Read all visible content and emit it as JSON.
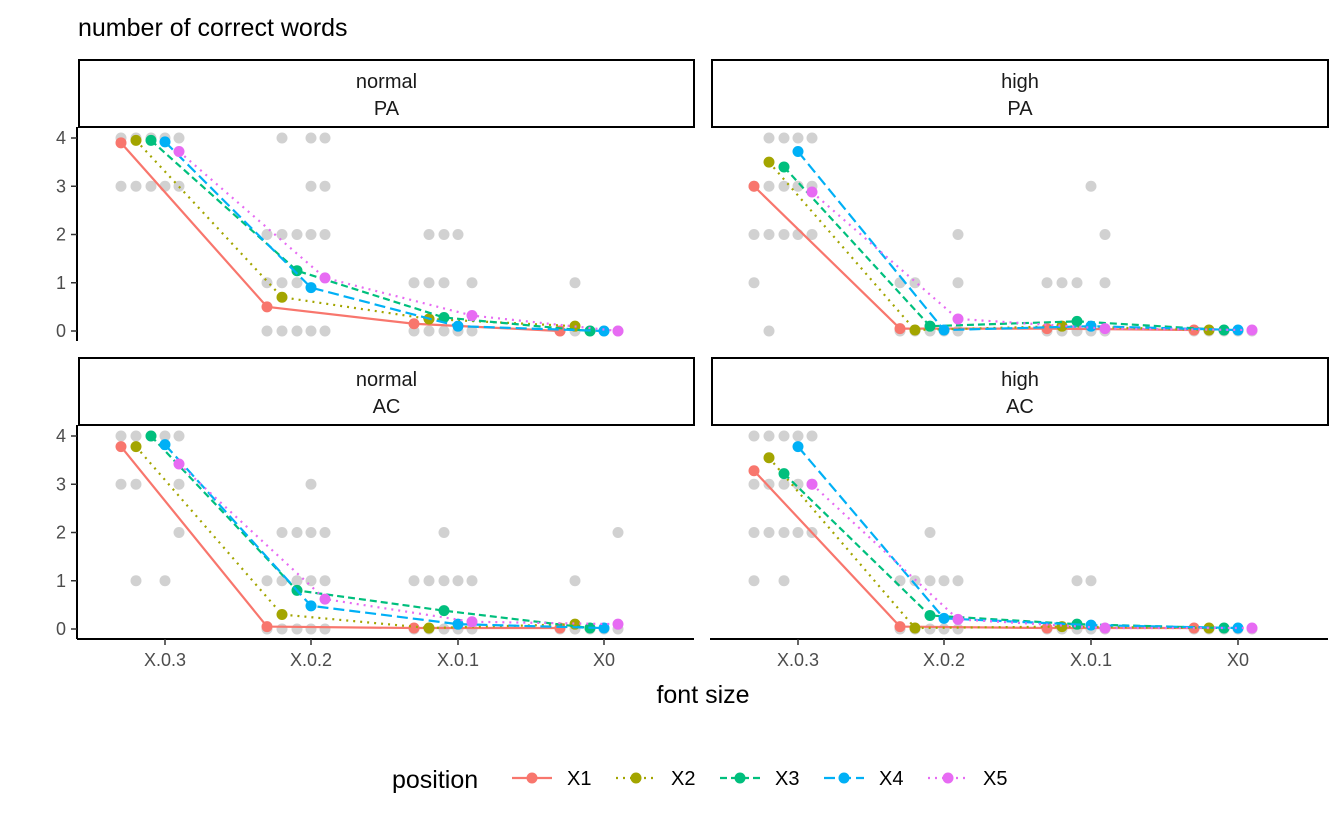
{
  "chart_data": {
    "type": "line",
    "title": "",
    "ylabel": "number of correct words",
    "xlabel": "font size",
    "ylim": [
      0,
      4
    ],
    "y_ticks": [
      0,
      1,
      2,
      3,
      4
    ],
    "categories": [
      "X.0.3",
      "X.0.2",
      "X.0.1",
      "X0"
    ],
    "legend": {
      "title": "position",
      "placement": "bottom",
      "entries": [
        "X1",
        "X2",
        "X3",
        "X4",
        "X5"
      ]
    },
    "series_styles": [
      {
        "name": "X1",
        "color": "#F8766D",
        "dash": "solid"
      },
      {
        "name": "X2",
        "color": "#A3A500",
        "dash": "dotted"
      },
      {
        "name": "X3",
        "color": "#00BF7D",
        "dash": "dashed"
      },
      {
        "name": "X4",
        "color": "#00B0F6",
        "dash": "longdash"
      },
      {
        "name": "X5",
        "color": "#E76BF3",
        "dash": "dotted"
      }
    ],
    "raw_points_color": "#999999",
    "panels": [
      {
        "strip": [
          "normal",
          "PA"
        ],
        "series": [
          {
            "name": "X1",
            "values": [
              3.9,
              0.5,
              0.15,
              0.0
            ]
          },
          {
            "name": "X2",
            "values": [
              3.95,
              0.7,
              0.25,
              0.1
            ]
          },
          {
            "name": "X3",
            "values": [
              3.95,
              1.25,
              0.28,
              0.0
            ]
          },
          {
            "name": "X4",
            "values": [
              3.92,
              0.9,
              0.1,
              0.0
            ]
          },
          {
            "name": "X5",
            "values": [
              3.72,
              1.1,
              0.32,
              0.0
            ]
          }
        ],
        "raw": [
          [
            [
              4,
              3
            ],
            [
              4,
              3
            ],
            [
              4,
              3
            ],
            [
              4,
              3
            ],
            [
              4,
              3
            ]
          ],
          [
            [
              2,
              1,
              0
            ],
            [
              2,
              1,
              0,
              4
            ],
            [
              2,
              1,
              0
            ],
            [
              4,
              3,
              2,
              0
            ],
            [
              4,
              3,
              2,
              0
            ]
          ],
          [
            [
              1,
              0
            ],
            [
              2,
              1,
              0
            ],
            [
              2,
              1,
              0
            ],
            [
              2,
              0
            ],
            [
              1,
              0
            ]
          ],
          [
            [
              0
            ],
            [
              1,
              0
            ],
            [
              0
            ],
            [
              0
            ],
            [
              0
            ]
          ]
        ]
      },
      {
        "strip": [
          "high",
          "PA"
        ],
        "series": [
          {
            "name": "X1",
            "values": [
              3.0,
              0.05,
              0.05,
              0.02
            ]
          },
          {
            "name": "X2",
            "values": [
              3.5,
              0.02,
              0.1,
              0.02
            ]
          },
          {
            "name": "X3",
            "values": [
              3.4,
              0.1,
              0.2,
              0.02
            ]
          },
          {
            "name": "X4",
            "values": [
              3.72,
              0.02,
              0.1,
              0.02
            ]
          },
          {
            "name": "X5",
            "values": [
              2.88,
              0.25,
              0.05,
              0.02
            ]
          }
        ],
        "raw": [
          [
            [
              3,
              2,
              1
            ],
            [
              4,
              3,
              2,
              0
            ],
            [
              4,
              3,
              2
            ],
            [
              4,
              3,
              2
            ],
            [
              4,
              3,
              2
            ]
          ],
          [
            [
              1,
              0
            ],
            [
              1,
              0
            ],
            [
              0
            ],
            [
              0
            ],
            [
              2,
              1,
              0
            ]
          ],
          [
            [
              1,
              0
            ],
            [
              1,
              0
            ],
            [
              1,
              0
            ],
            [
              3,
              0
            ],
            [
              2,
              1,
              0
            ]
          ],
          [
            [
              0
            ],
            [
              0
            ],
            [
              0
            ],
            [
              0
            ],
            [
              0
            ]
          ]
        ]
      },
      {
        "strip": [
          "normal",
          "AC"
        ],
        "series": [
          {
            "name": "X1",
            "values": [
              3.78,
              0.05,
              0.02,
              0.02
            ]
          },
          {
            "name": "X2",
            "values": [
              3.78,
              0.3,
              0.02,
              0.1
            ]
          },
          {
            "name": "X3",
            "values": [
              4.0,
              0.8,
              0.38,
              0.02
            ]
          },
          {
            "name": "X4",
            "values": [
              3.82,
              0.48,
              0.1,
              0.02
            ]
          },
          {
            "name": "X5",
            "values": [
              3.42,
              0.62,
              0.15,
              0.1
            ]
          }
        ],
        "raw": [
          [
            [
              4,
              3
            ],
            [
              4,
              3,
              1
            ],
            [
              4
            ],
            [
              4,
              1
            ],
            [
              4,
              3,
              2
            ]
          ],
          [
            [
              1,
              0
            ],
            [
              2,
              1,
              0
            ],
            [
              2,
              1,
              0
            ],
            [
              3,
              2,
              1,
              0
            ],
            [
              2,
              1,
              0
            ]
          ],
          [
            [
              1,
              0
            ],
            [
              1,
              0
            ],
            [
              2,
              1,
              0
            ],
            [
              1,
              0
            ],
            [
              1,
              0
            ]
          ],
          [
            [
              0
            ],
            [
              1,
              0
            ],
            [
              0
            ],
            [
              0
            ],
            [
              2,
              0
            ]
          ]
        ]
      },
      {
        "strip": [
          "high",
          "AC"
        ],
        "series": [
          {
            "name": "X1",
            "values": [
              3.28,
              0.05,
              0.02,
              0.02
            ]
          },
          {
            "name": "X2",
            "values": [
              3.55,
              0.02,
              0.05,
              0.02
            ]
          },
          {
            "name": "X3",
            "values": [
              3.22,
              0.28,
              0.1,
              0.02
            ]
          },
          {
            "name": "X4",
            "values": [
              3.78,
              0.22,
              0.08,
              0.02
            ]
          },
          {
            "name": "X5",
            "values": [
              3.0,
              0.2,
              0.02,
              0.02
            ]
          }
        ],
        "raw": [
          [
            [
              4,
              3,
              2,
              1
            ],
            [
              4,
              3,
              2
            ],
            [
              4,
              3,
              2,
              1
            ],
            [
              4,
              3,
              2
            ],
            [
              4,
              3,
              2
            ]
          ],
          [
            [
              1,
              0
            ],
            [
              1,
              0
            ],
            [
              2,
              1,
              0
            ],
            [
              1,
              0
            ],
            [
              1,
              0
            ]
          ],
          [
            [
              0
            ],
            [
              0
            ],
            [
              1,
              0
            ],
            [
              1,
              0
            ],
            [
              0
            ]
          ],
          [
            [
              0
            ],
            [
              0
            ],
            [
              0
            ],
            [
              0
            ],
            [
              0
            ]
          ]
        ]
      }
    ]
  }
}
